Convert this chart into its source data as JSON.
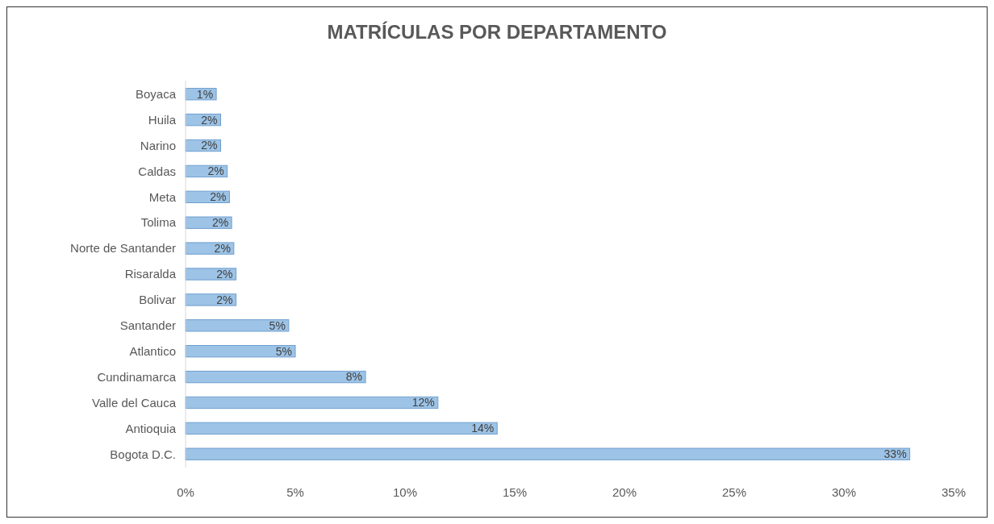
{
  "chart_data": {
    "type": "bar",
    "orientation": "horizontal",
    "title": "MATRÍCULAS POR DEPARTAMENTO",
    "categories": [
      "Boyaca",
      "Huila",
      "Narino",
      "Caldas",
      "Meta",
      "Tolima",
      "Norte de Santander",
      "Risaralda",
      "Bolivar",
      "Santander",
      "Atlantico",
      "Cundinamarca",
      "Valle del Cauca",
      "Antioquia",
      "Bogota D.C."
    ],
    "values": [
      1.4,
      1.6,
      1.6,
      1.9,
      2.0,
      2.1,
      2.2,
      2.3,
      2.3,
      4.7,
      5.0,
      8.2,
      11.5,
      14.2,
      33.0
    ],
    "value_labels": [
      "1%",
      "2%",
      "2%",
      "2%",
      "2%",
      "2%",
      "2%",
      "2%",
      "2%",
      "5%",
      "5%",
      "8%",
      "12%",
      "14%",
      "33%"
    ],
    "color": "#9dc3e6",
    "xlim": [
      0,
      35
    ],
    "xticks": [
      {
        "value": 0,
        "label": "0%"
      },
      {
        "value": 5,
        "label": "5%"
      },
      {
        "value": 10,
        "label": "10%"
      },
      {
        "value": 15,
        "label": "15%"
      },
      {
        "value": 20,
        "label": "20%"
      },
      {
        "value": 25,
        "label": "25%"
      },
      {
        "value": 30,
        "label": "30%"
      },
      {
        "value": 35,
        "label": "35%"
      }
    ],
    "grid": false
  }
}
